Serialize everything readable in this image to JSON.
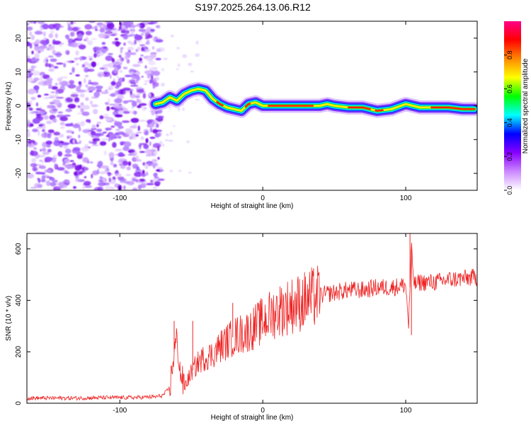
{
  "title": "S197.2025.264.13.06.R12",
  "chart_data": [
    {
      "type": "heatmap",
      "title": "S197.2025.264.13.06.R12",
      "xlabel": "Height of straight line (km)",
      "ylabel": "Frequency (Hz)",
      "xlim": [
        -165,
        150
      ],
      "ylim": [
        -25,
        25
      ],
      "xticks": [
        -100,
        0,
        100
      ],
      "yticks": [
        -20,
        -10,
        0,
        10,
        20
      ],
      "colorbar": {
        "label": "Normalized spectral amplitude",
        "range": [
          0,
          1
        ],
        "ticks": [
          "0.0",
          "0.2",
          "0.4",
          "0.6",
          "0.8"
        ],
        "colors": [
          "#ffffff",
          "#cc88ff",
          "#8800ff",
          "#0000ff",
          "#00ffff",
          "#00ff00",
          "#ffff00",
          "#ff8800",
          "#ff0000",
          "#ff0088"
        ]
      },
      "noise_region_x": [
        -165,
        -75
      ],
      "ridge": {
        "x": [
          -75,
          -70,
          -65,
          -60,
          -55,
          -50,
          -45,
          -40,
          -35,
          -30,
          -25,
          -20,
          -15,
          -10,
          -5,
          0,
          10,
          20,
          30,
          40,
          45,
          50,
          60,
          70,
          80,
          90,
          100,
          110,
          120,
          130,
          140,
          148
        ],
        "freq": [
          0.5,
          1.0,
          2.5,
          1.5,
          3.5,
          4.5,
          5.0,
          4.5,
          2.0,
          0.5,
          -0.5,
          -1.0,
          -1.5,
          0.5,
          1.0,
          0.0,
          0.0,
          0.0,
          0.0,
          0.0,
          0.5,
          0.0,
          -0.5,
          -0.5,
          -1.5,
          -1.0,
          0.5,
          -0.5,
          -0.5,
          -0.5,
          -1.0,
          -1.0
        ]
      }
    },
    {
      "type": "line",
      "xlabel": "Height of straight line (km)",
      "ylabel": "SNR (10 * v/v)",
      "xlim": [
        -165,
        150
      ],
      "ylim": [
        0,
        660
      ],
      "xticks": [
        -100,
        0,
        100
      ],
      "yticks": [
        0,
        200,
        400,
        600
      ],
      "color": "#ee2222",
      "series": [
        {
          "name": "SNR",
          "x": [
            -165,
            -150,
            -130,
            -110,
            -90,
            -75,
            -70,
            -65,
            -62,
            -60,
            -58,
            -55,
            -50,
            -45,
            -40,
            -35,
            -30,
            -25,
            -20,
            -15,
            -10,
            -5,
            0,
            10,
            20,
            30,
            40,
            50,
            60,
            70,
            80,
            90,
            95,
            100,
            102,
            104,
            106,
            110,
            120,
            130,
            140,
            150
          ],
          "values": [
            20,
            20,
            20,
            22,
            22,
            25,
            30,
            60,
            200,
            250,
            130,
            60,
            120,
            160,
            180,
            190,
            220,
            240,
            260,
            270,
            280,
            300,
            320,
            360,
            380,
            400,
            420,
            430,
            440,
            440,
            450,
            450,
            455,
            460,
            300,
            600,
            460,
            470,
            470,
            480,
            485,
            490
          ]
        }
      ],
      "spikes": [
        {
          "x": -62,
          "value": 320
        },
        {
          "x": -49,
          "value": 320
        },
        {
          "x": -21,
          "value": 390
        },
        {
          "x": 103,
          "value": 660
        },
        {
          "x": 104,
          "value": 265
        }
      ]
    }
  ]
}
